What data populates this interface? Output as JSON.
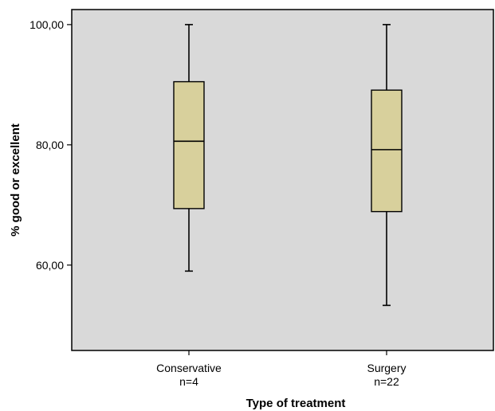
{
  "chart_data": {
    "type": "boxplot",
    "xlabel": "Type of treatment",
    "ylabel": "% good or excellent",
    "ylim": [
      45.8,
      102.5
    ],
    "yticks": [
      {
        "value": 60,
        "label": "60,00"
      },
      {
        "value": 80,
        "label": "80,00"
      },
      {
        "value": 100,
        "label": "100,00"
      }
    ],
    "categories": [
      {
        "name": "Conservative",
        "n_label": "n=4",
        "whisker_low": 59.0,
        "q1": 69.4,
        "median": 80.6,
        "q3": 90.5,
        "whisker_high": 100.0
      },
      {
        "name": "Surgery",
        "n_label": "n=22",
        "whisker_low": 53.3,
        "q1": 68.9,
        "median": 79.2,
        "q3": 89.1,
        "whisker_high": 100.0
      }
    ],
    "plot_background": "#d9d9d9",
    "box_fill": "#d8d09c",
    "grid": false,
    "legend": "none"
  }
}
